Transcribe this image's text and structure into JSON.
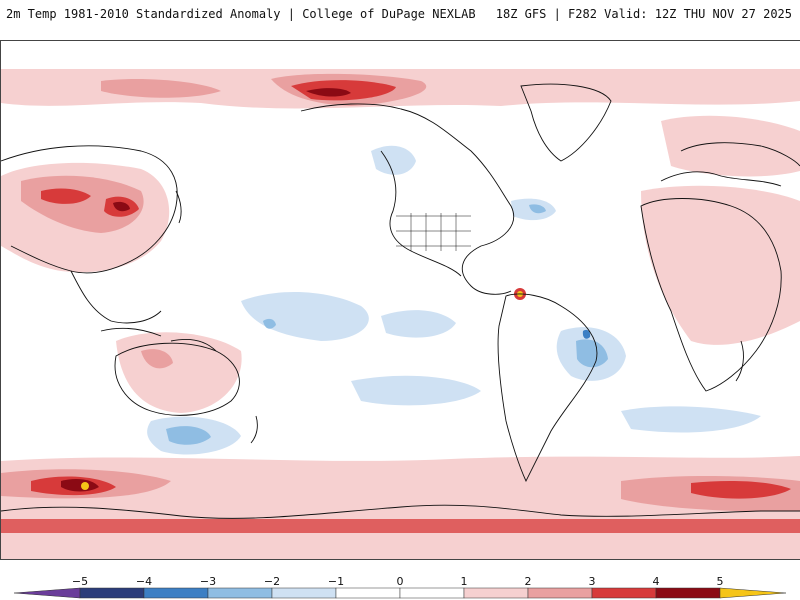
{
  "header": {
    "title_left": "2m Temp 1981-2010 Standardized Anomaly | College of DuPage NEXLAB",
    "title_right": "18Z GFS | F282 Valid: 12Z THU NOV 27 2025"
  },
  "map": {
    "variable": "2m temperature standardized anomaly",
    "model": "GFS",
    "projection": "global equirectangular"
  },
  "colorbar": {
    "ticks": [
      "−5",
      "−4",
      "−3",
      "−2",
      "−1",
      "0",
      "1",
      "2",
      "3",
      "4",
      "5"
    ],
    "colors": {
      "below_min": "#6a3d9a",
      "-5_-4": "#2b3c7a",
      "-4_-3": "#3c7fc4",
      "-3_-2": "#8fbde3",
      "-2_-1": "#cfe1f3",
      "-1_0": "#ffffff",
      "0_1": "#ffffff",
      "1_2": "#f6d0d0",
      "2_3": "#e9a0a0",
      "3_4": "#d73a3a",
      "4_5": "#8b0a14",
      "above_max": "#f5c518"
    }
  }
}
